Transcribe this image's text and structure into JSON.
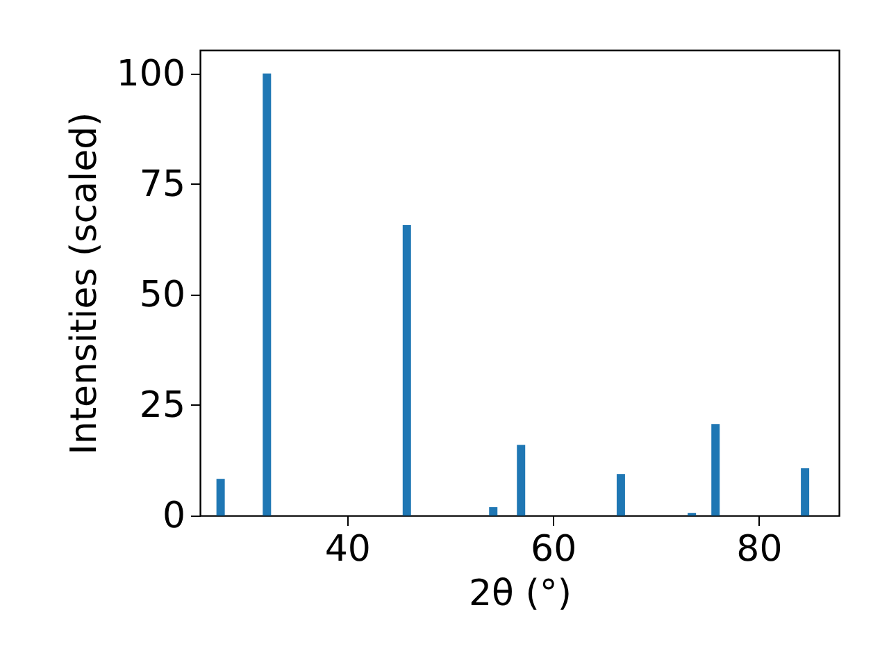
{
  "chart_data": {
    "type": "bar",
    "xlabel": "2θ (°)",
    "ylabel": "Intensities (scaled)",
    "x": [
      27.7,
      32.2,
      45.8,
      54.2,
      56.9,
      66.6,
      73.5,
      75.8,
      84.5
    ],
    "series": [
      {
        "color": "#1f77b4",
        "values": [
          8.3,
          100,
          65.7,
          1.9,
          16.0,
          9.4,
          0.6,
          20.7,
          10.7
        ]
      }
    ],
    "xlim": [
      25.7,
      87.8
    ],
    "ylim": [
      0,
      105.3
    ],
    "xticks": [
      40,
      60,
      80
    ],
    "yticks": [
      0,
      25,
      50,
      75,
      100
    ],
    "grid": false
  }
}
